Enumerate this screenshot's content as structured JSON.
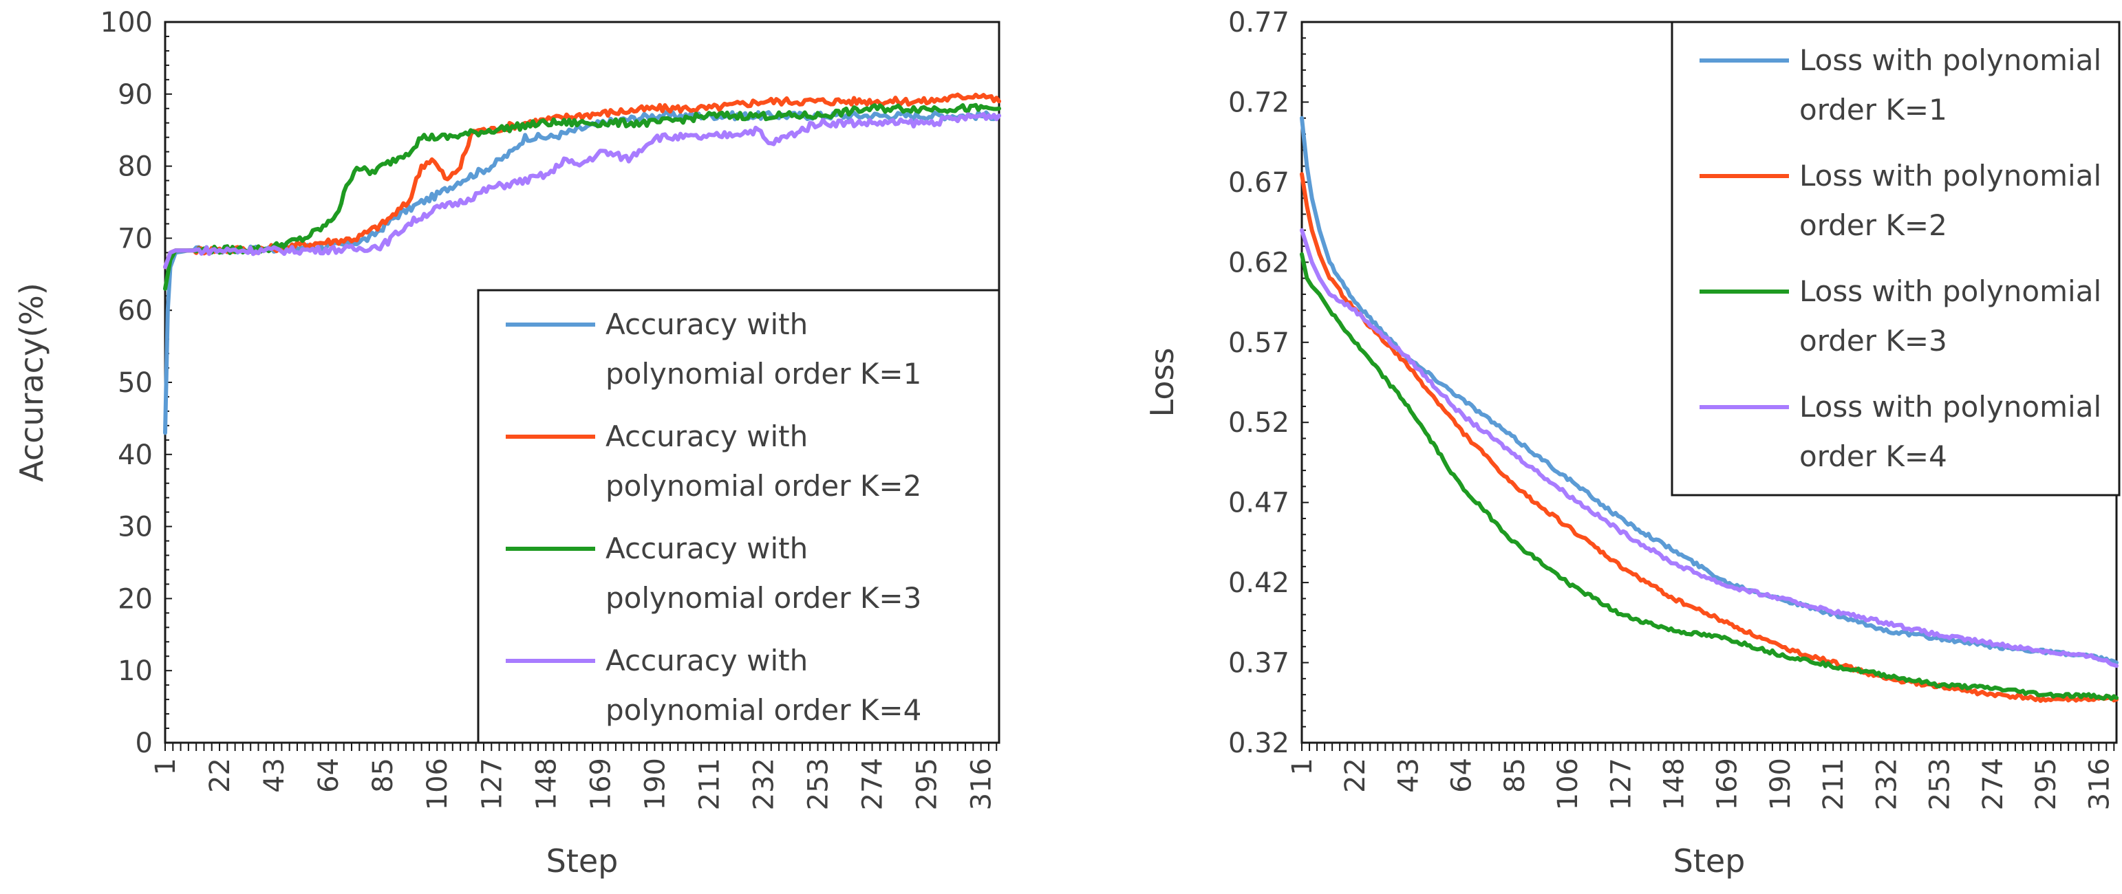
{
  "colors": {
    "k1": "#5b9bd5",
    "k2": "#fc4f1a",
    "k3": "#1e9a21",
    "k4": "#a87cff"
  },
  "chart_data": [
    {
      "type": "line",
      "xlabel": "Step",
      "ylabel": "Accuracy(%)",
      "ylim": [
        0,
        100
      ],
      "yticks": [
        "0",
        "10",
        "20",
        "30",
        "40",
        "50",
        "60",
        "70",
        "80",
        "90",
        "100"
      ],
      "xlim": [
        1,
        323
      ],
      "xticks": [
        "1",
        "22",
        "43",
        "64",
        "85",
        "106",
        "127",
        "148",
        "169",
        "190",
        "211",
        "232",
        "253",
        "274",
        "295",
        "316"
      ],
      "legend_position": "bottom-right",
      "series": [
        {
          "name_line1": "Accuracy with",
          "name_line2": "polynomial order K=1",
          "color_key": "k1",
          "x": [
            1,
            2,
            3,
            5,
            10,
            40,
            70,
            80,
            90,
            100,
            106,
            115,
            127,
            135,
            140,
            145,
            150,
            160,
            170,
            190,
            211,
            232,
            253,
            274,
            295,
            316,
            323
          ],
          "y": [
            43,
            60,
            66,
            68,
            68.3,
            68.5,
            69,
            70,
            73,
            75,
            76,
            78,
            80,
            82,
            84,
            84,
            84,
            85,
            86,
            87,
            87,
            87,
            87,
            87,
            87,
            87,
            87
          ]
        },
        {
          "name_line1": "Accuracy with",
          "name_line2": "polynomial order K=2",
          "color_key": "k2",
          "x": [
            1,
            2,
            3,
            5,
            10,
            40,
            64,
            75,
            85,
            95,
            100,
            104,
            110,
            115,
            120,
            127,
            140,
            160,
            190,
            211,
            232,
            253,
            274,
            295,
            316,
            323
          ],
          "y": [
            66,
            67,
            68,
            68.3,
            68.3,
            68.5,
            69.5,
            70,
            72,
            75,
            80,
            81,
            78,
            80,
            85,
            85,
            86,
            87,
            88,
            88,
            89,
            89,
            89,
            89,
            90,
            89
          ]
        },
        {
          "name_line1": "Accuracy with",
          "name_line2": "polynomial order K=3",
          "color_key": "k3",
          "x": [
            1,
            2,
            3,
            5,
            10,
            40,
            55,
            64,
            68,
            72,
            75,
            80,
            85,
            90,
            95,
            100,
            110,
            127,
            148,
            169,
            190,
            211,
            232,
            253,
            274,
            295,
            316,
            323
          ],
          "y": [
            63,
            65,
            67,
            68.3,
            68.3,
            68.5,
            70,
            72,
            74,
            78,
            80,
            79,
            80,
            81,
            82,
            84,
            84,
            85,
            86,
            86,
            86,
            87,
            87,
            87,
            88,
            88,
            88,
            88
          ]
        },
        {
          "name_line1": "Accuracy with",
          "name_line2": "polynomial order K=4",
          "color_key": "k4",
          "x": [
            1,
            2,
            3,
            5,
            10,
            50,
            75,
            85,
            95,
            105,
            115,
            127,
            140,
            150,
            155,
            160,
            170,
            180,
            190,
            211,
            230,
            234,
            253,
            274,
            295,
            316,
            323
          ],
          "y": [
            66,
            67,
            68,
            68.3,
            68.3,
            68.3,
            68.5,
            69,
            72,
            74,
            75,
            77,
            78,
            79,
            81,
            80,
            82,
            81,
            84,
            84,
            85,
            83,
            86,
            86,
            86,
            87,
            87
          ]
        }
      ]
    },
    {
      "type": "line",
      "xlabel": "Step",
      "ylabel": "Loss",
      "ylim": [
        0.32,
        0.77
      ],
      "yticks": [
        "0.32",
        "0.37",
        "0.42",
        "0.47",
        "0.52",
        "0.57",
        "0.62",
        "0.67",
        "0.72",
        "0.77"
      ],
      "xlim": [
        1,
        323
      ],
      "xticks": [
        "1",
        "22",
        "43",
        "64",
        "85",
        "106",
        "127",
        "148",
        "169",
        "190",
        "211",
        "232",
        "253",
        "274",
        "295",
        "316"
      ],
      "legend_position": "top-right",
      "series": [
        {
          "name_line1": "Loss with polynomial",
          "name_line2": "order K=1",
          "color_key": "k1",
          "x": [
            1,
            3,
            5,
            8,
            12,
            22,
            43,
            64,
            85,
            106,
            127,
            148,
            169,
            190,
            211,
            232,
            253,
            274,
            295,
            316,
            323
          ],
          "y": [
            0.71,
            0.68,
            0.66,
            0.64,
            0.62,
            0.595,
            0.56,
            0.535,
            0.51,
            0.485,
            0.46,
            0.44,
            0.42,
            0.41,
            0.4,
            0.39,
            0.385,
            0.38,
            0.377,
            0.373,
            0.37
          ]
        },
        {
          "name_line1": "Loss with polynomial",
          "name_line2": "order K=2",
          "color_key": "k2",
          "x": [
            1,
            3,
            5,
            8,
            12,
            22,
            43,
            64,
            85,
            106,
            127,
            148,
            169,
            190,
            211,
            232,
            253,
            274,
            295,
            316,
            323
          ],
          "y": [
            0.675,
            0.655,
            0.64,
            0.625,
            0.61,
            0.59,
            0.555,
            0.515,
            0.48,
            0.455,
            0.43,
            0.41,
            0.395,
            0.38,
            0.37,
            0.36,
            0.355,
            0.35,
            0.347,
            0.347,
            0.347
          ]
        },
        {
          "name_line1": "Loss with polynomial",
          "name_line2": "order K=3",
          "color_key": "k3",
          "x": [
            1,
            3,
            5,
            8,
            12,
            22,
            43,
            64,
            85,
            106,
            127,
            148,
            169,
            190,
            211,
            232,
            253,
            274,
            295,
            316,
            323
          ],
          "y": [
            0.625,
            0.61,
            0.605,
            0.6,
            0.59,
            0.57,
            0.53,
            0.48,
            0.445,
            0.42,
            0.4,
            0.39,
            0.385,
            0.375,
            0.368,
            0.362,
            0.356,
            0.354,
            0.35,
            0.349,
            0.348
          ]
        },
        {
          "name_line1": "Loss with polynomial",
          "name_line2": "order K=4",
          "color_key": "k4",
          "x": [
            1,
            3,
            5,
            8,
            12,
            22,
            43,
            64,
            85,
            106,
            127,
            148,
            169,
            190,
            211,
            232,
            253,
            274,
            295,
            316,
            323
          ],
          "y": [
            0.64,
            0.63,
            0.62,
            0.61,
            0.6,
            0.59,
            0.56,
            0.525,
            0.5,
            0.475,
            0.452,
            0.432,
            0.418,
            0.41,
            0.402,
            0.395,
            0.387,
            0.382,
            0.377,
            0.373,
            0.368
          ]
        }
      ]
    }
  ]
}
